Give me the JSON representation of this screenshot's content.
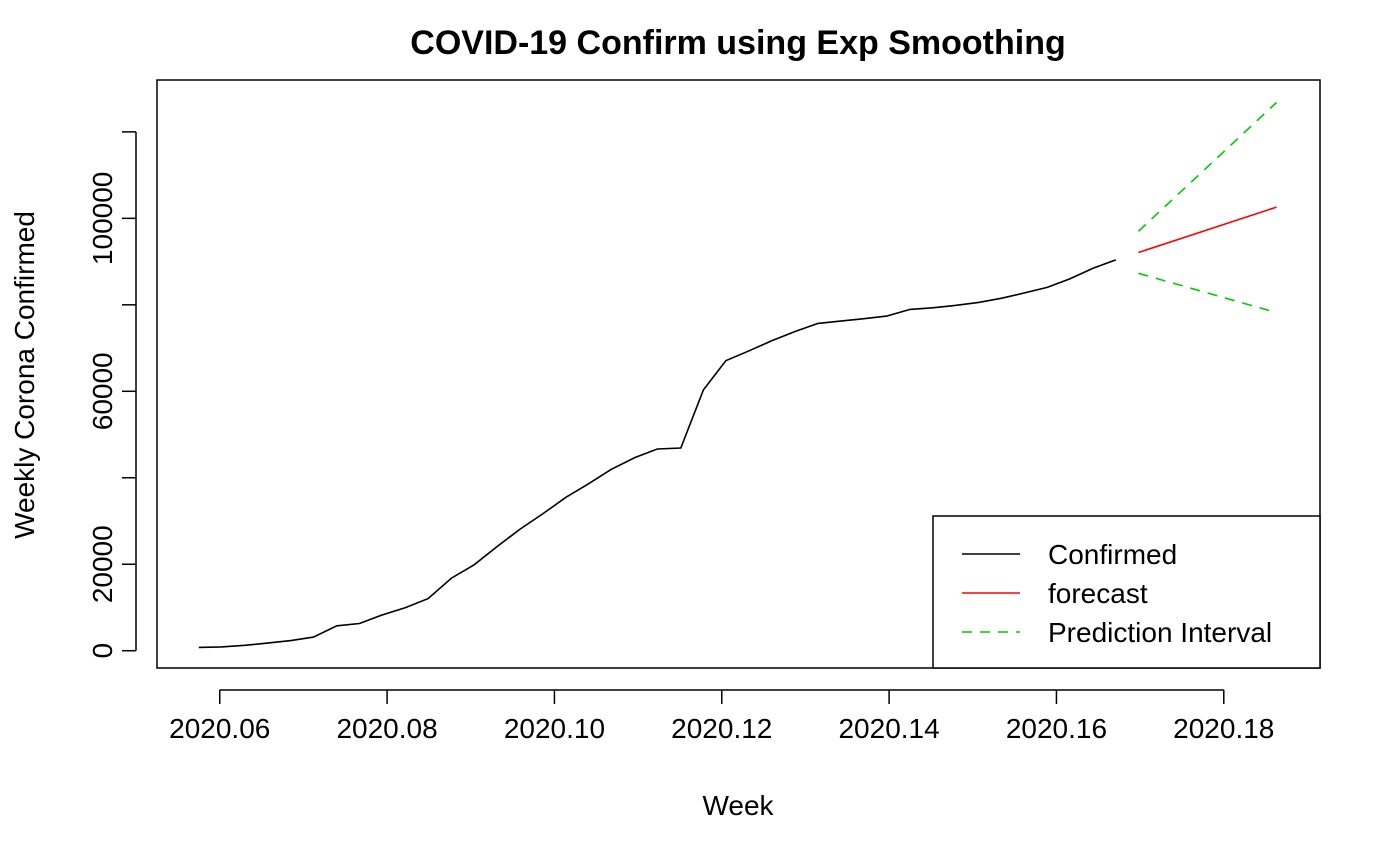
{
  "chart_data": {
    "type": "line",
    "title": "COVID-19 Confirm using Exp Smoothing",
    "xlabel": "Week",
    "ylabel": "Weekly Corona Confirmed",
    "xlim": [
      2020.0525,
      2020.1915
    ],
    "ylim": [
      -4000,
      132000
    ],
    "x_ticks": [
      2020.06,
      2020.08,
      2020.1,
      2020.12,
      2020.14,
      2020.16,
      2020.18
    ],
    "x_tick_labels": [
      "2020.06",
      "2020.08",
      "2020.10",
      "2020.12",
      "2020.14",
      "2020.16",
      "2020.18"
    ],
    "y_ticks": [
      0,
      20000,
      40000,
      60000,
      80000,
      100000,
      120000
    ],
    "y_tick_labels": [
      "0",
      "20000",
      "",
      "60000",
      "",
      "100000",
      ""
    ],
    "grid": false,
    "legend_position": "bottom-right",
    "series": [
      {
        "name": "Confirmed",
        "color": "#000000",
        "dash": "solid",
        "x": [
          2020.0575,
          2020.0602,
          2020.063,
          2020.0657,
          2020.0685,
          2020.0712,
          2020.074,
          2020.0767,
          2020.0795,
          2020.0822,
          2020.0849,
          2020.0877,
          2020.0904,
          2020.0932,
          2020.0959,
          2020.0986,
          2020.1014,
          2020.1041,
          2020.1068,
          2020.1096,
          2020.1123,
          2020.1151,
          2020.1178,
          2020.1205,
          2020.1233,
          2020.126,
          2020.1288,
          2020.1315,
          2020.1342,
          2020.137,
          2020.1397,
          2020.1425,
          2020.1452,
          2020.1479,
          2020.1507,
          2020.1534,
          2020.1562,
          2020.1589,
          2020.1616,
          2020.1644,
          2020.1671
        ],
        "y": [
          763,
          880,
          1261,
          1766,
          2337,
          3150,
          5766,
          6284,
          8320,
          9976,
          12051,
          16787,
          19878,
          24139,
          28131,
          31636,
          35510,
          38634,
          41958,
          44655,
          46654,
          46893,
          60313,
          67091,
          69397,
          71726,
          73853,
          75703,
          76243,
          76787,
          77400,
          78950,
          79300,
          79860,
          80570,
          81500,
          82755,
          84020,
          86000,
          88500,
          90400
        ]
      },
      {
        "name": "forecast",
        "color": "#ff0000",
        "dash": "solid",
        "x": [
          2020.1698,
          2020.1863
        ],
        "y": [
          92100,
          102600
        ]
      },
      {
        "name": "Prediction Interval",
        "color": "#00cd00",
        "dash": "dashed",
        "x": [
          2020.1698,
          2020.1863
        ],
        "y": [
          97000,
          126800
        ]
      },
      {
        "name": "",
        "color": "#00cd00",
        "dash": "dashed",
        "x": [
          2020.1698,
          2020.1863
        ],
        "y": [
          87300,
          78200
        ]
      }
    ],
    "legend": [
      {
        "label": "Confirmed",
        "color": "#000000",
        "dash": "solid"
      },
      {
        "label": "forecast",
        "color": "#ff0000",
        "dash": "solid"
      },
      {
        "label": "Prediction Interval",
        "color": "#00cd00",
        "dash": "dashed"
      }
    ]
  }
}
